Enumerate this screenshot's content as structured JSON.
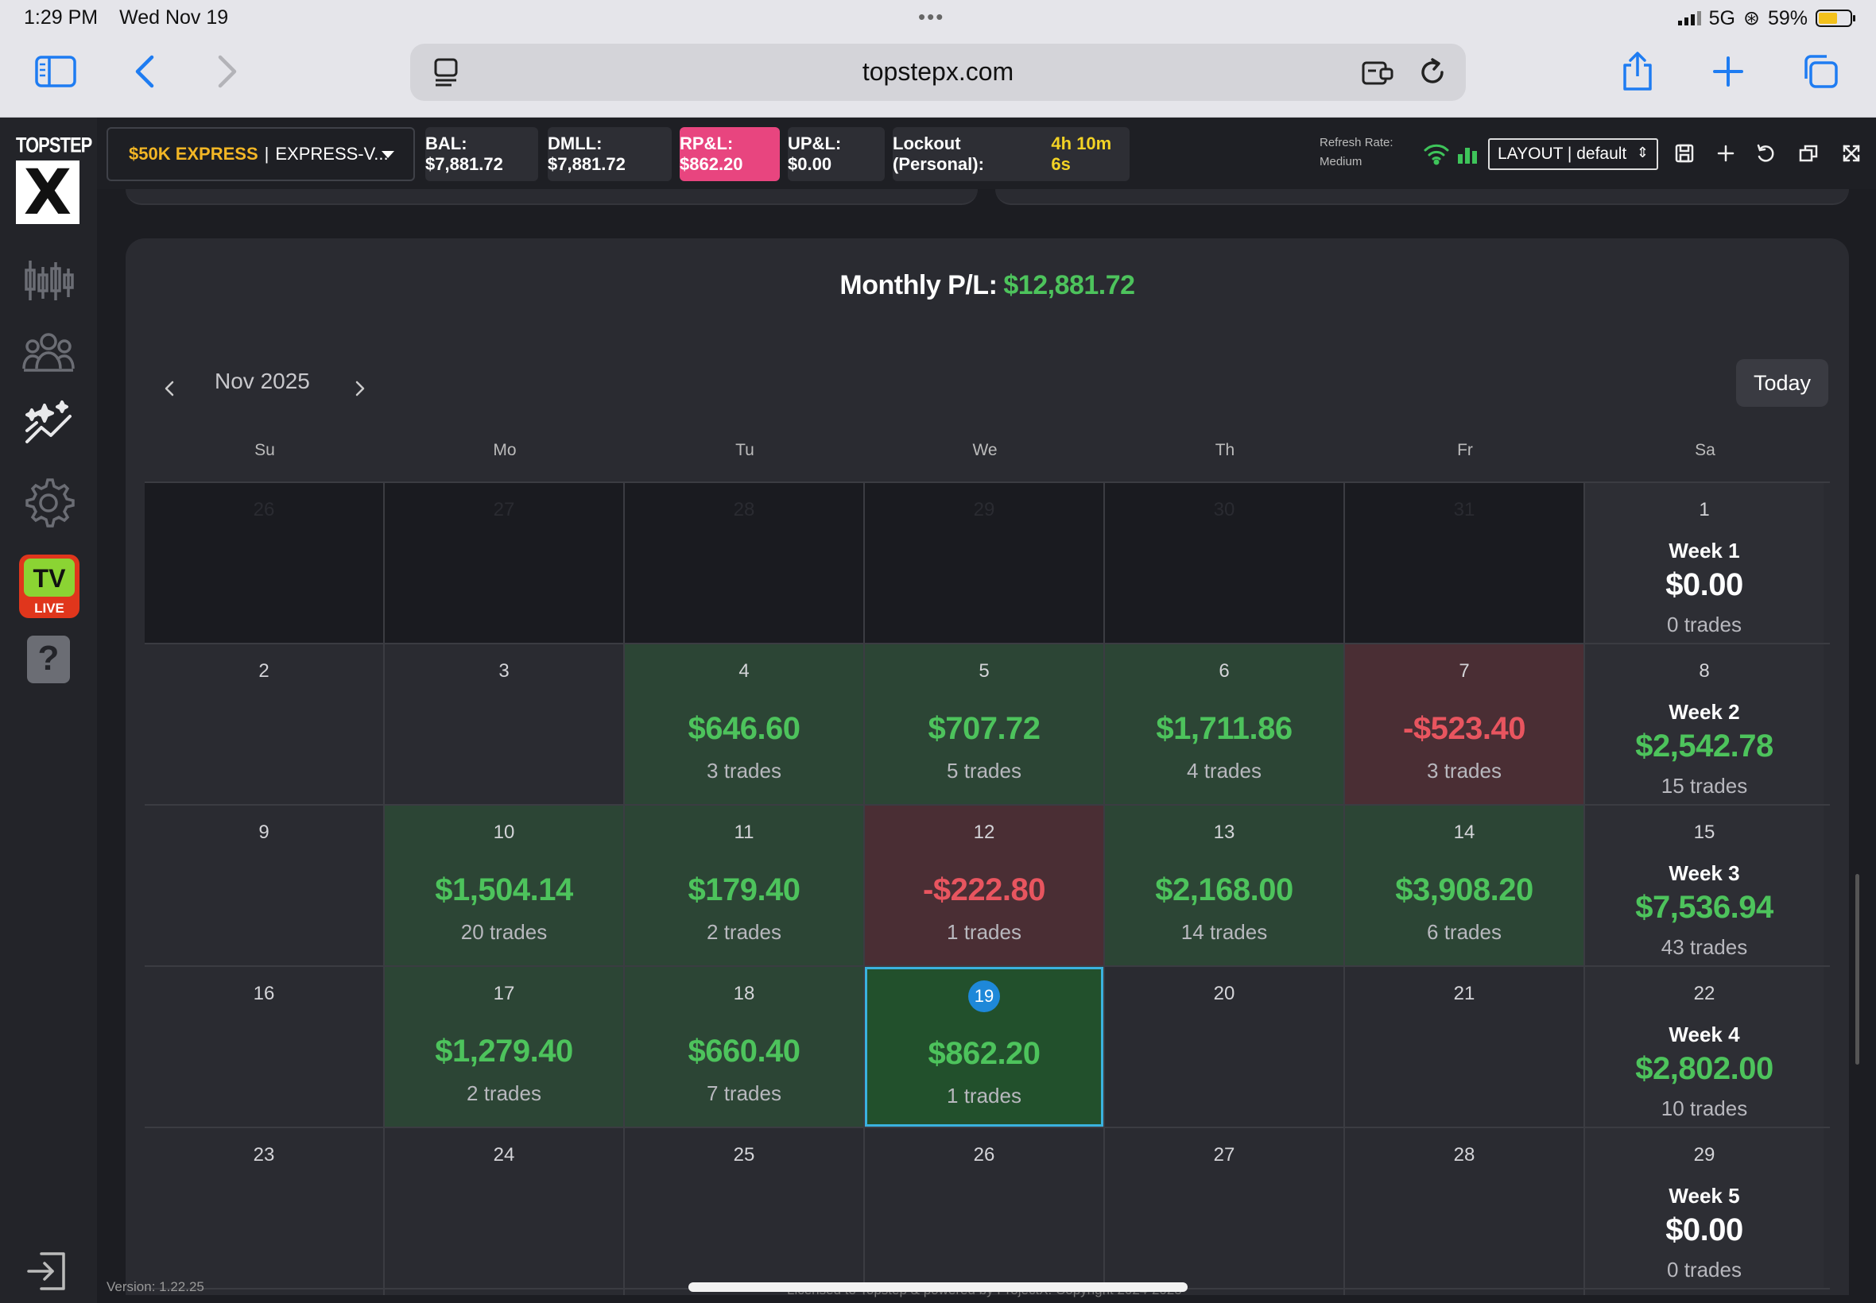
{
  "status": {
    "time": "1:29 PM",
    "date": "Wed Nov 19",
    "network": "5G",
    "battery": "59%"
  },
  "browser": {
    "url": "topstepx.com"
  },
  "brand": {
    "logo_text": "TOPSTEP",
    "logo_mark": "X"
  },
  "sidebar": {
    "tv_label": "TV",
    "tv_live": "LIVE",
    "help": "?"
  },
  "header": {
    "account_name": "$50K EXPRESS",
    "account_sep": "|",
    "account_id": "EXPRESS-V...",
    "bal": "BAL: $7,881.72",
    "dmll": "DMLL: $7,881.72",
    "rpl": "RP&L: $862.20",
    "upl": "UP&L: $0.00",
    "lockout_label": "Lockout (Personal):",
    "lockout_value": "4h 10m 6s",
    "refresh_label": "Refresh Rate:",
    "refresh_value": "Medium",
    "layout": "LAYOUT | default"
  },
  "calendar": {
    "monthly_label": "Monthly P/L:",
    "monthly_value": "$12,881.72",
    "month": "Nov 2025",
    "today_label": "Today",
    "days_of_week": [
      "Su",
      "Mo",
      "Tu",
      "We",
      "Th",
      "Fr",
      "Sa"
    ],
    "rows": [
      [
        {
          "day": "26",
          "state": "outside"
        },
        {
          "day": "27",
          "state": "outside"
        },
        {
          "day": "28",
          "state": "outside"
        },
        {
          "day": "29",
          "state": "outside"
        },
        {
          "day": "30",
          "state": "outside"
        },
        {
          "day": "31",
          "state": "outside"
        },
        {
          "day": "1",
          "state": "sat",
          "week": "Week 1",
          "amount": "$0.00",
          "trades": "0 trades",
          "tone": "w"
        }
      ],
      [
        {
          "day": "2",
          "state": "empty"
        },
        {
          "day": "3",
          "state": "empty"
        },
        {
          "day": "4",
          "state": "pos",
          "amount": "$646.60",
          "trades": "3 trades",
          "tone": "g"
        },
        {
          "day": "5",
          "state": "pos",
          "amount": "$707.72",
          "trades": "5 trades",
          "tone": "g"
        },
        {
          "day": "6",
          "state": "pos",
          "amount": "$1,711.86",
          "trades": "4 trades",
          "tone": "g"
        },
        {
          "day": "7",
          "state": "neg",
          "amount": "-$523.40",
          "trades": "3 trades",
          "tone": "r"
        },
        {
          "day": "8",
          "state": "sat",
          "week": "Week 2",
          "amount": "$2,542.78",
          "trades": "15 trades",
          "tone": "g"
        }
      ],
      [
        {
          "day": "9",
          "state": "empty"
        },
        {
          "day": "10",
          "state": "pos",
          "amount": "$1,504.14",
          "trades": "20 trades",
          "tone": "g"
        },
        {
          "day": "11",
          "state": "pos",
          "amount": "$179.40",
          "trades": "2 trades",
          "tone": "g"
        },
        {
          "day": "12",
          "state": "neg",
          "amount": "-$222.80",
          "trades": "1 trades",
          "tone": "r"
        },
        {
          "day": "13",
          "state": "pos",
          "amount": "$2,168.00",
          "trades": "14 trades",
          "tone": "g"
        },
        {
          "day": "14",
          "state": "pos",
          "amount": "$3,908.20",
          "trades": "6 trades",
          "tone": "g"
        },
        {
          "day": "15",
          "state": "sat",
          "week": "Week 3",
          "amount": "$7,536.94",
          "trades": "43 trades",
          "tone": "g"
        }
      ],
      [
        {
          "day": "16",
          "state": "empty"
        },
        {
          "day": "17",
          "state": "pos",
          "amount": "$1,279.40",
          "trades": "2 trades",
          "tone": "g"
        },
        {
          "day": "18",
          "state": "pos",
          "amount": "$660.40",
          "trades": "7 trades",
          "tone": "g"
        },
        {
          "day": "19",
          "state": "today",
          "amount": "$862.20",
          "trades": "1 trades",
          "tone": "g"
        },
        {
          "day": "20",
          "state": "empty"
        },
        {
          "day": "21",
          "state": "empty"
        },
        {
          "day": "22",
          "state": "sat",
          "week": "Week 4",
          "amount": "$2,802.00",
          "trades": "10 trades",
          "tone": "g"
        }
      ],
      [
        {
          "day": "23",
          "state": "empty"
        },
        {
          "day": "24",
          "state": "empty"
        },
        {
          "day": "25",
          "state": "empty"
        },
        {
          "day": "26",
          "state": "empty"
        },
        {
          "day": "27",
          "state": "empty"
        },
        {
          "day": "28",
          "state": "empty"
        },
        {
          "day": "29",
          "state": "sat",
          "week": "Week 5",
          "amount": "$0.00",
          "trades": "0 trades",
          "tone": "w"
        }
      ]
    ]
  },
  "footer": {
    "version": "Version: 1.22.25",
    "license": "Licensed to Topstep & powered by ProjectX. Copyright 2024-2025"
  }
}
